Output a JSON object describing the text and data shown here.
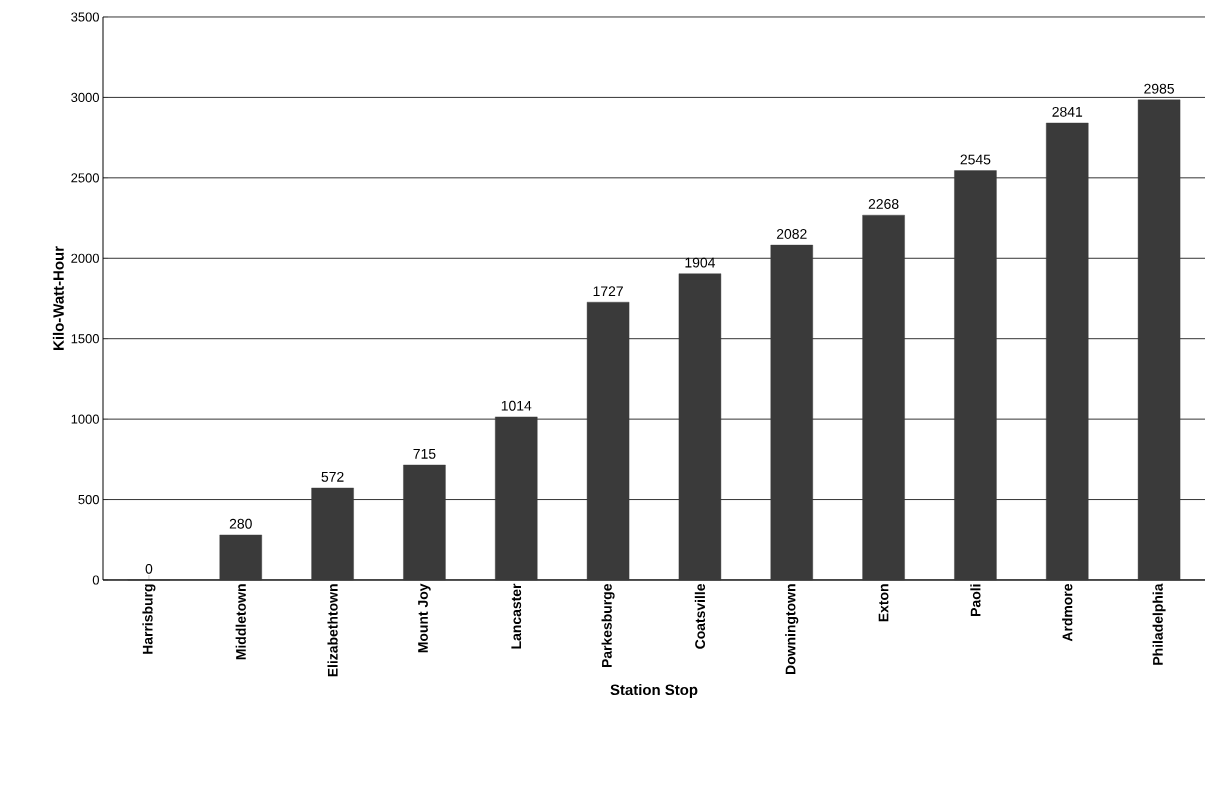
{
  "chart_data": {
    "type": "bar",
    "xlabel": "Station Stop",
    "ylabel": "Kilo-Watt-Hour",
    "categories": [
      "Harrisburg",
      "Middletown",
      "Elizabethtown",
      "Mount Joy",
      "Lancaster",
      "Parkesburge",
      "Coatsville",
      "Downingtown",
      "Exton",
      "Paoli",
      "Ardmore",
      "Philadelphia"
    ],
    "values": [
      0,
      280,
      572,
      715,
      1014,
      1727,
      1904,
      2082,
      2268,
      2545,
      2841,
      2985
    ],
    "color": "#3a3a3a",
    "ylim": [
      0,
      3500
    ],
    "yticks": [
      0,
      500,
      1000,
      1500,
      2000,
      2500,
      3000,
      3500
    ],
    "grid": "y",
    "data_labels": true
  }
}
